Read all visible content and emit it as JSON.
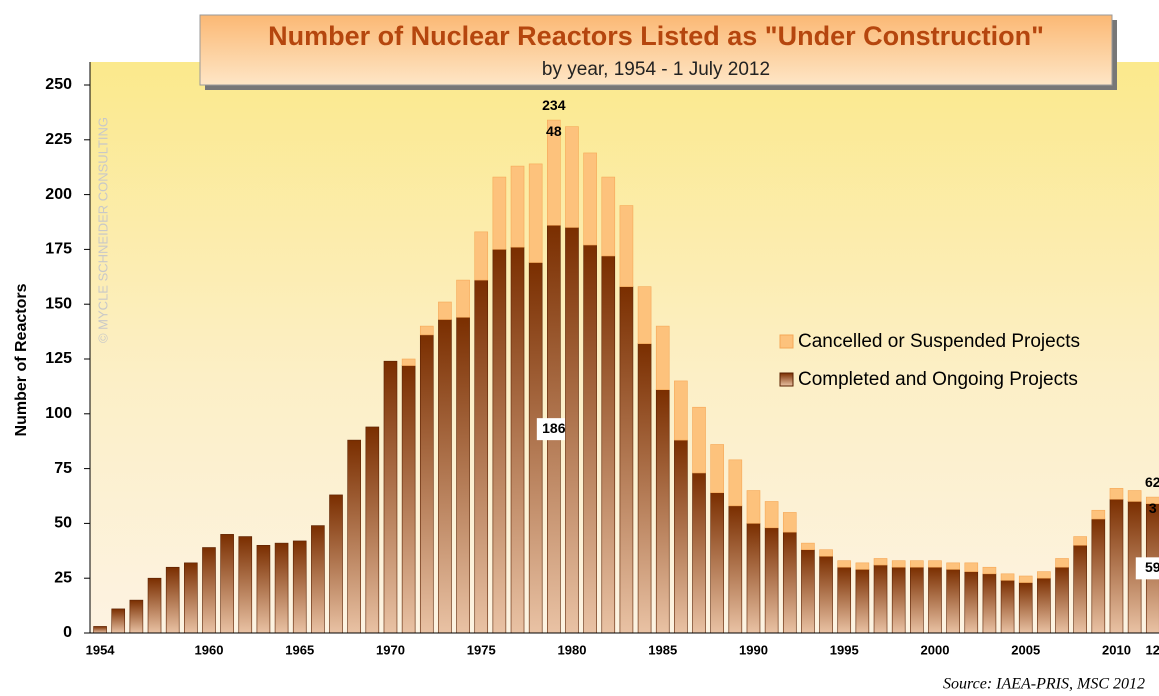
{
  "chart_data": {
    "type": "stacked-bar",
    "title": "Number of Nuclear Reactors Listed as \"Under Construction\"",
    "subtitle": "by year, 1954 - 1 July 2012",
    "y_label": "Number of Reactors",
    "watermark": "© MYCLE SCHNEIDER CONSULTING",
    "source": "Source: IAEA-PRIS, MSC 2012",
    "categories": [
      "1954",
      null,
      null,
      null,
      null,
      null,
      "1960",
      null,
      null,
      null,
      null,
      "1965",
      null,
      null,
      null,
      null,
      "1970",
      null,
      null,
      null,
      null,
      "1975",
      null,
      null,
      null,
      null,
      "1980",
      null,
      null,
      null,
      null,
      "1985",
      null,
      null,
      null,
      null,
      "1990",
      null,
      null,
      null,
      null,
      "1995",
      null,
      null,
      null,
      null,
      "2000",
      null,
      null,
      null,
      null,
      "2005",
      null,
      null,
      null,
      null,
      "2010",
      null,
      "12"
    ],
    "series": [
      {
        "name": "Completed and Ongoing Projects",
        "color": "#8a3a08",
        "values": [
          3,
          11,
          15,
          25,
          30,
          32,
          39,
          45,
          44,
          40,
          41,
          42,
          49,
          63,
          88,
          94,
          124,
          122,
          136,
          143,
          144,
          161,
          175,
          176,
          169,
          186,
          185,
          177,
          172,
          158,
          132,
          111,
          88,
          73,
          64,
          58,
          50,
          48,
          46,
          38,
          35,
          30,
          29,
          31,
          30,
          30,
          30,
          29,
          28,
          27,
          24,
          23,
          25,
          30,
          40,
          52,
          61,
          60,
          59
        ],
        "value_labels": [
          null,
          null,
          null,
          null,
          null,
          null,
          null,
          null,
          null,
          null,
          null,
          null,
          null,
          null,
          null,
          null,
          null,
          null,
          null,
          null,
          null,
          null,
          null,
          null,
          null,
          "186",
          null,
          null,
          null,
          null,
          null,
          null,
          null,
          null,
          null,
          null,
          null,
          null,
          null,
          null,
          null,
          null,
          null,
          null,
          null,
          null,
          null,
          null,
          null,
          null,
          null,
          null,
          null,
          null,
          null,
          null,
          null,
          null,
          "59"
        ]
      },
      {
        "name": "Cancelled or Suspended Projects",
        "color": "#fdc27c",
        "values": [
          0,
          0,
          0,
          0,
          0,
          0,
          0,
          0,
          0,
          0,
          0,
          0,
          0,
          0,
          0,
          0,
          0,
          3,
          4,
          8,
          17,
          22,
          33,
          37,
          45,
          48,
          46,
          42,
          36,
          37,
          26,
          29,
          27,
          30,
          22,
          21,
          15,
          12,
          9,
          3,
          3,
          3,
          3,
          3,
          3,
          3,
          3,
          3,
          4,
          3,
          3,
          3,
          3,
          4,
          4,
          4,
          5,
          5,
          3
        ],
        "value_labels": [
          null,
          null,
          null,
          null,
          null,
          null,
          null,
          null,
          null,
          null,
          null,
          null,
          null,
          null,
          null,
          null,
          null,
          null,
          null,
          null,
          null,
          null,
          null,
          null,
          null,
          "48",
          null,
          null,
          null,
          null,
          null,
          null,
          null,
          null,
          null,
          null,
          null,
          null,
          null,
          null,
          null,
          null,
          null,
          null,
          null,
          null,
          null,
          null,
          null,
          null,
          null,
          null,
          null,
          null,
          null,
          null,
          null,
          null,
          "3"
        ]
      }
    ],
    "total_labels": [
      null,
      null,
      null,
      null,
      null,
      null,
      null,
      null,
      null,
      null,
      null,
      null,
      null,
      null,
      null,
      null,
      null,
      null,
      null,
      null,
      null,
      null,
      null,
      null,
      null,
      "234",
      null,
      null,
      null,
      null,
      null,
      null,
      null,
      null,
      null,
      null,
      null,
      null,
      null,
      null,
      null,
      null,
      null,
      null,
      null,
      null,
      null,
      null,
      null,
      null,
      null,
      null,
      null,
      null,
      null,
      null,
      null,
      null,
      "62"
    ],
    "ylim": [
      0,
      250
    ],
    "yticks": [
      0,
      25,
      50,
      75,
      100,
      125,
      150,
      175,
      200,
      225,
      250
    ],
    "grid": false
  }
}
